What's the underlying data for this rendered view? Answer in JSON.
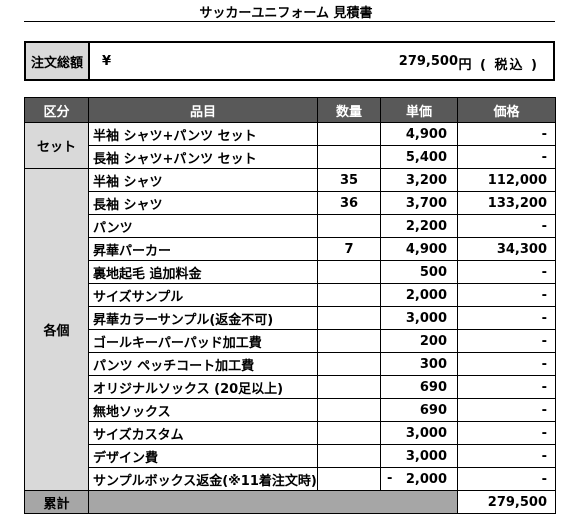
{
  "title": "サッカーユニフォーム 見積書",
  "order_total": {
    "label": "注文総額",
    "currency": "¥",
    "amount": "279,500",
    "unit": "円 ( 税込 )"
  },
  "table": {
    "headers": [
      "区分",
      "品目",
      "数量",
      "単価",
      "価格"
    ],
    "sections": [
      {
        "category": "セット",
        "rows": [
          {
            "item": "半袖 シャツ+パンツ セット",
            "qty": "",
            "unit_price": "4,900",
            "price": "-"
          },
          {
            "item": "長袖 シャツ+パンツ セット",
            "qty": "",
            "unit_price": "5,400",
            "price": "-"
          }
        ]
      },
      {
        "category": "各個",
        "rows": [
          {
            "item": "半袖 シャツ",
            "qty": "35",
            "unit_price": "3,200",
            "price": "112,000"
          },
          {
            "item": "長袖 シャツ",
            "qty": "36",
            "unit_price": "3,700",
            "price": "133,200"
          },
          {
            "item": "パンツ",
            "qty": "",
            "unit_price": "2,200",
            "price": "-"
          },
          {
            "item": "昇華パーカー",
            "qty": "7",
            "unit_price": "4,900",
            "price": "34,300"
          },
          {
            "item": "裏地起毛 追加料金",
            "qty": "",
            "unit_price": "500",
            "price": "-"
          },
          {
            "item": "サイズサンプル",
            "qty": "",
            "unit_price": "2,000",
            "price": "-"
          },
          {
            "item": "昇華カラーサンプル(返金不可)",
            "qty": "",
            "unit_price": "3,000",
            "price": "-"
          },
          {
            "item": "ゴールキーパーパッド加工費",
            "qty": "",
            "unit_price": "200",
            "price": "-"
          },
          {
            "item": "パンツ ペッチコート加工費",
            "qty": "",
            "unit_price": "300",
            "price": "-"
          },
          {
            "item": "オリジナルソックス (20足以上)",
            "qty": "",
            "unit_price": "690",
            "price": "-"
          },
          {
            "item": "無地ソックス",
            "qty": "",
            "unit_price": "690",
            "price": "-"
          },
          {
            "item": "サイズカスタム",
            "qty": "",
            "unit_price": "3,000",
            "price": "-"
          },
          {
            "item": "デザイン費",
            "qty": "",
            "unit_price": "3,000",
            "price": "-"
          },
          {
            "item": "サンプルボックス返金(※11着注文時)",
            "qty": "",
            "unit_price": "2,000",
            "unit_price_sign": "-",
            "price": "-"
          }
        ]
      }
    ],
    "total": {
      "label": "累計",
      "value": "279,500"
    }
  }
}
